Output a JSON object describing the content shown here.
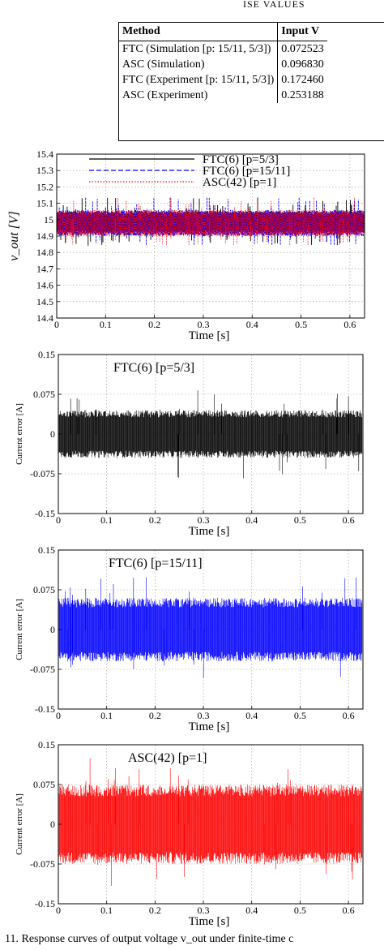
{
  "table": {
    "caption": "ISE VALUES",
    "columns": [
      "Method",
      "Input V"
    ],
    "rows": [
      [
        "FTC (Simulation [p: 15/11, 5/3])",
        "0.072523"
      ],
      [
        "ASC (Simulation)",
        "0.096830"
      ],
      [
        "FTC (Experiment [p: 15/11, 5/3])",
        "0.172460"
      ],
      [
        "ASC (Experiment)",
        "0.253188"
      ]
    ]
  },
  "figure_caption": "11.   Response curves of output voltage v_out under finite-time c",
  "chart_data": [
    {
      "type": "line",
      "ylabel": "v_out [V]",
      "xlabel": "Time [s]",
      "xlim": [
        0,
        0.63
      ],
      "ylim": [
        14.4,
        15.4
      ],
      "x_ticks": [
        "0",
        "0.1",
        "0.2",
        "0.3",
        "0.4",
        "0.5",
        "0.6"
      ],
      "y_ticks": [
        "15.4",
        "15.3",
        "15.2",
        "15.1",
        "15",
        "14.9",
        "14.8",
        "14.7",
        "14.6",
        "14.5",
        "14.4"
      ],
      "grid": true,
      "legend_position": "top",
      "series": [
        {
          "name": "FTC(6) [p=5/3]",
          "color": "#000000",
          "style": "solid",
          "center": 15.0,
          "band": [
            14.92,
            15.05
          ]
        },
        {
          "name": "FTC(6) [p=15/11]",
          "color": "#0000ff",
          "style": "dashed",
          "center": 15.0,
          "band": [
            14.9,
            15.06
          ]
        },
        {
          "name": "ASC(42) [p=1]",
          "color": "#ff0000",
          "style": "dotted",
          "center": 15.0,
          "band": [
            14.9,
            15.06
          ]
        }
      ]
    },
    {
      "type": "line",
      "title": "FTC(6) [p=5/3]",
      "ylabel": "Current error [A]",
      "xlabel": "Time [s]",
      "xlim": [
        0,
        0.63
      ],
      "ylim": [
        -0.15,
        0.15
      ],
      "x_ticks": [
        "0",
        "0.1",
        "0.2",
        "0.3",
        "0.4",
        "0.5",
        "0.6"
      ],
      "y_ticks": [
        "0.15",
        "0.075",
        "0",
        "-0.075",
        "-0.15"
      ],
      "grid": true,
      "series": [
        {
          "name": "FTC(6) [p=5/3]",
          "color": "#000000",
          "band": [
            -0.045,
            0.045
          ],
          "peak": 0.085
        }
      ]
    },
    {
      "type": "line",
      "title": "FTC(6) [p=15/11]",
      "ylabel": "Current error [A]",
      "xlabel": "Time [s]",
      "xlim": [
        0,
        0.63
      ],
      "ylim": [
        -0.15,
        0.15
      ],
      "x_ticks": [
        "0",
        "0.1",
        "0.2",
        "0.3",
        "0.4",
        "0.5",
        "0.6"
      ],
      "y_ticks": [
        "0.15",
        "0.075",
        "0",
        "-0.075",
        "-0.15"
      ],
      "grid": true,
      "series": [
        {
          "name": "FTC(6) [p=15/11]",
          "color": "#0000ff",
          "band": [
            -0.06,
            0.06
          ],
          "peak": 0.1
        }
      ]
    },
    {
      "type": "line",
      "title": "ASC(42) [p=1]",
      "ylabel": "Current error [A]",
      "xlabel": "Time [s]",
      "xlim": [
        0,
        0.63
      ],
      "ylim": [
        -0.15,
        0.15
      ],
      "x_ticks": [
        "0",
        "0.1",
        "0.2",
        "0.3",
        "0.4",
        "0.5",
        "0.6"
      ],
      "y_ticks": [
        "0.15",
        "0.075",
        "0",
        "-0.075",
        "-0.15"
      ],
      "grid": true,
      "series": [
        {
          "name": "ASC(42) [p=1]",
          "color": "#ff0000",
          "band": [
            -0.075,
            0.075
          ],
          "peak": 0.125
        }
      ]
    }
  ]
}
